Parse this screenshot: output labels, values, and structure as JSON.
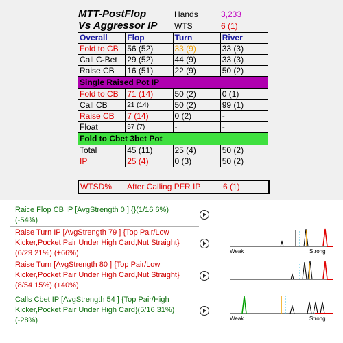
{
  "header": {
    "title1": "MTT-PostFlop",
    "title2": "Vs Aggressor IP",
    "hands_label": "Hands",
    "hands_value": "3,233",
    "wts_label": "WTS",
    "wts_value": "6 (1)",
    "colors": {
      "hands": "#c000c0",
      "wts": "#e00000"
    }
  },
  "table": {
    "columns": [
      "Overall",
      "Flop",
      "Turn",
      "River"
    ],
    "sections": [
      {
        "rows": [
          {
            "label": "Fold to CB",
            "flop": "56 (52)",
            "turn": "33 (9)",
            "river": "33 (3)"
          },
          {
            "label": "Call C-Bet",
            "flop": "29 (52)",
            "turn": "44 (9)",
            "river": "33 (3)"
          },
          {
            "label": "Raise CB",
            "flop": "16 (51)",
            "turn": "22 (9)",
            "river": "50 (2)"
          }
        ]
      },
      {
        "title": "Single Raised Pot IP",
        "rows": [
          {
            "label": "Fold to CB",
            "flop": "71 (14)",
            "turn": "50 (2)",
            "river": "0 (1)"
          },
          {
            "label": "Call CB",
            "flop": "21 (14)",
            "turn": "50 (2)",
            "river": "99 (1)"
          },
          {
            "label": "Raise CB",
            "flop": "7 (14)",
            "turn": "0 (2)",
            "river": "-"
          },
          {
            "label": "Float",
            "flop": "57 (7)",
            "turn": "-",
            "river": "-"
          }
        ]
      },
      {
        "title": "Fold to Cbet 3bet  Pot",
        "rows": [
          {
            "label": "Total",
            "flop": "45 (11)",
            "turn": "25 (4)",
            "river": "50 (2)"
          },
          {
            "label": "IP",
            "flop": "25 (4)",
            "turn": "0 (3)",
            "river": "50 (2)"
          }
        ]
      }
    ]
  },
  "wtsd": {
    "label": "WTSD%",
    "context": "After Calling PFR IP",
    "value": "6 (1)"
  },
  "moves": [
    {
      "line1": "Raice Flop CB IP [AvgStrength 0 ] {}(1/16 6%)",
      "line2": "(-54%)",
      "line3": "",
      "color": "green"
    },
    {
      "line1": "Raise Turn IP [AvgStrength 79 ] {Top Pair/Low",
      "line2": "Kicker,Pocket Pair Under High Card,Nut Straight}",
      "line3": "(6/29 21%) (+66%)",
      "color": "red"
    },
    {
      "line1": "Raise Turn [AvgStrength 80 ] {Top Pair/Low",
      "line2": "Kicker,Pocket Pair Under High Card,Nut Straight}",
      "line3": "(8/54 15%) (+40%)",
      "color": "red"
    },
    {
      "line1": "Calls Cbet IP [AvgStrength 54 ] {Top Pair/High",
      "line2": "Kicker,Pocket Pair Under High Card}(5/16 31%)",
      "line3": "(-28%)",
      "color": "green"
    }
  ],
  "dist_labels": {
    "weak": "Weak",
    "strong": "Strong"
  }
}
